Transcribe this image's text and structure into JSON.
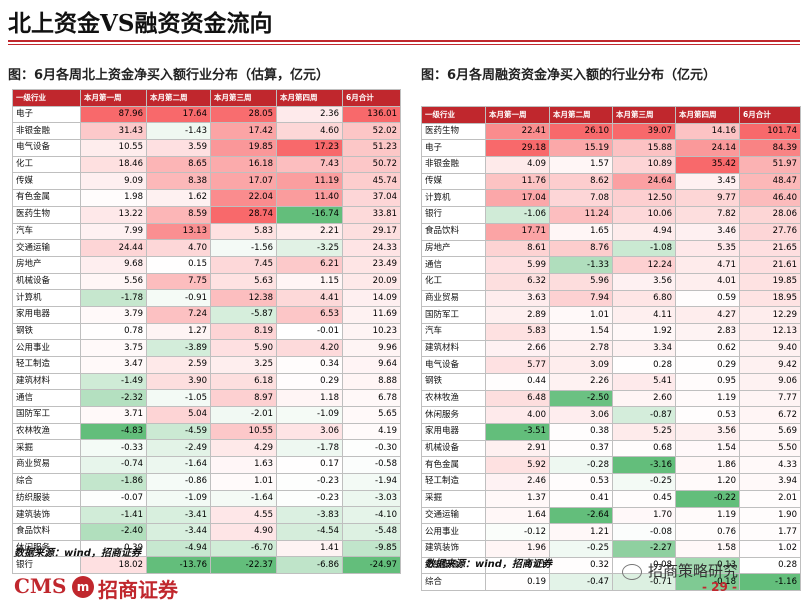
{
  "title": "北上资金VS融资资金流向",
  "left": {
    "caption": "图：6月各周北上资金净买入额行业分布（估算，亿元）",
    "headers": [
      "一级行业",
      "本月第一周",
      "本月第二周",
      "本月第三周",
      "本月第四周",
      "6月合计"
    ],
    "rows": [
      [
        "电子",
        "87.96",
        "17.64",
        "28.05",
        "2.36",
        "136.01"
      ],
      [
        "非银金融",
        "31.43",
        "-1.43",
        "17.42",
        "4.60",
        "52.02"
      ],
      [
        "电气设备",
        "10.55",
        "3.59",
        "19.85",
        "17.23",
        "51.23"
      ],
      [
        "化工",
        "18.46",
        "8.65",
        "16.18",
        "7.43",
        "50.72"
      ],
      [
        "传媒",
        "9.09",
        "8.38",
        "17.07",
        "11.19",
        "45.74"
      ],
      [
        "有色金属",
        "1.98",
        "1.62",
        "22.04",
        "11.40",
        "37.04"
      ],
      [
        "医药生物",
        "13.22",
        "8.59",
        "28.74",
        "-16.74",
        "33.81"
      ],
      [
        "汽车",
        "7.99",
        "13.13",
        "5.83",
        "2.21",
        "29.17"
      ],
      [
        "交通运输",
        "24.44",
        "4.70",
        "-1.56",
        "-3.25",
        "24.33"
      ],
      [
        "房地产",
        "9.68",
        "0.15",
        "7.45",
        "6.21",
        "23.49"
      ],
      [
        "机械设备",
        "5.56",
        "7.75",
        "5.63",
        "1.15",
        "20.09"
      ],
      [
        "计算机",
        "-1.78",
        "-0.91",
        "12.38",
        "4.41",
        "14.09"
      ],
      [
        "家用电器",
        "3.79",
        "7.24",
        "-5.87",
        "6.53",
        "11.69"
      ],
      [
        "钢铁",
        "0.78",
        "1.27",
        "8.19",
        "-0.01",
        "10.23"
      ],
      [
        "公用事业",
        "3.75",
        "-3.89",
        "5.90",
        "4.20",
        "9.96"
      ],
      [
        "轻工制造",
        "3.47",
        "2.59",
        "3.25",
        "0.34",
        "9.64"
      ],
      [
        "建筑材料",
        "-1.49",
        "3.90",
        "6.18",
        "0.29",
        "8.88"
      ],
      [
        "通信",
        "-2.32",
        "-1.05",
        "8.97",
        "1.18",
        "6.78"
      ],
      [
        "国防军工",
        "3.71",
        "5.04",
        "-2.01",
        "-1.09",
        "5.65"
      ],
      [
        "农林牧渔",
        "-4.83",
        "-4.59",
        "10.55",
        "3.06",
        "4.19"
      ],
      [
        "采掘",
        "-0.33",
        "-2.49",
        "4.29",
        "-1.78",
        "-0.30"
      ],
      [
        "商业贸易",
        "-0.74",
        "-1.64",
        "1.63",
        "0.17",
        "-0.58"
      ],
      [
        "综合",
        "-1.86",
        "-0.86",
        "1.01",
        "-0.23",
        "-1.94"
      ],
      [
        "纺织服装",
        "-0.07",
        "-1.09",
        "-1.64",
        "-0.23",
        "-3.03"
      ],
      [
        "建筑装饰",
        "-1.41",
        "-3.41",
        "4.55",
        "-3.83",
        "-4.10"
      ],
      [
        "食品饮料",
        "-2.40",
        "-3.44",
        "4.90",
        "-4.54",
        "-5.48"
      ],
      [
        "休闲服务",
        "0.39",
        "-4.94",
        "-6.70",
        "1.41",
        "-9.85"
      ],
      [
        "银行",
        "18.02",
        "-13.76",
        "-22.37",
        "-6.86",
        "-24.97"
      ]
    ]
  },
  "right": {
    "caption": "图：6月各周融资资金净买入额的行业分布（亿元）",
    "headers": [
      "一级行业",
      "本月第一周",
      "本月第二周",
      "本月第三周",
      "本月第四周",
      "6月合计"
    ],
    "rows": [
      [
        "医药生物",
        "22.41",
        "26.10",
        "39.07",
        "14.16",
        "101.74"
      ],
      [
        "电子",
        "29.18",
        "15.19",
        "15.88",
        "24.14",
        "84.39"
      ],
      [
        "非银金融",
        "4.09",
        "1.57",
        "10.89",
        "35.42",
        "51.97"
      ],
      [
        "传媒",
        "11.76",
        "8.62",
        "24.64",
        "3.45",
        "48.47"
      ],
      [
        "计算机",
        "17.04",
        "7.08",
        "12.50",
        "9.77",
        "46.40"
      ],
      [
        "银行",
        "-1.06",
        "11.24",
        "10.06",
        "7.82",
        "28.06"
      ],
      [
        "食品饮料",
        "17.71",
        "1.65",
        "4.94",
        "3.46",
        "27.76"
      ],
      [
        "房地产",
        "8.61",
        "8.76",
        "-1.08",
        "5.35",
        "21.65"
      ],
      [
        "通信",
        "5.99",
        "-1.33",
        "12.24",
        "4.71",
        "21.61"
      ],
      [
        "化工",
        "6.32",
        "5.96",
        "3.56",
        "4.01",
        "19.85"
      ],
      [
        "商业贸易",
        "3.63",
        "7.94",
        "6.80",
        "0.59",
        "18.95"
      ],
      [
        "国防军工",
        "2.89",
        "1.01",
        "4.11",
        "4.27",
        "12.29"
      ],
      [
        "汽车",
        "5.83",
        "1.54",
        "1.92",
        "2.83",
        "12.13"
      ],
      [
        "建筑材料",
        "2.66",
        "2.78",
        "3.34",
        "0.62",
        "9.40"
      ],
      [
        "电气设备",
        "5.77",
        "3.09",
        "0.28",
        "0.29",
        "9.42"
      ],
      [
        "钢铁",
        "0.44",
        "2.26",
        "5.41",
        "0.95",
        "9.06"
      ],
      [
        "农林牧渔",
        "6.48",
        "-2.50",
        "2.60",
        "1.19",
        "7.77"
      ],
      [
        "休闲服务",
        "4.00",
        "3.06",
        "-0.87",
        "0.53",
        "6.72"
      ],
      [
        "家用电器",
        "-3.51",
        "0.38",
        "5.25",
        "3.56",
        "5.69"
      ],
      [
        "机械设备",
        "2.91",
        "0.37",
        "0.68",
        "1.54",
        "5.50"
      ],
      [
        "有色金属",
        "5.92",
        "-0.28",
        "-3.16",
        "1.86",
        "4.33"
      ],
      [
        "轻工制造",
        "2.46",
        "0.53",
        "-0.25",
        "1.20",
        "3.94"
      ],
      [
        "采掘",
        "1.37",
        "0.41",
        "0.45",
        "-0.22",
        "2.01"
      ],
      [
        "交通运输",
        "1.64",
        "-2.64",
        "1.70",
        "1.19",
        "1.90"
      ],
      [
        "公用事业",
        "-0.12",
        "1.21",
        "-0.08",
        "0.76",
        "1.77"
      ],
      [
        "建筑装饰",
        "1.96",
        "-0.25",
        "-2.27",
        "1.58",
        "1.02"
      ],
      [
        "纺织服装",
        "0.01",
        "0.32",
        "0.08",
        "-0.13",
        "0.28"
      ],
      [
        "综合",
        "0.19",
        "-0.47",
        "-0.71",
        "-0.18",
        "-1.16"
      ]
    ]
  },
  "source": "数据来源：wind，招商证券",
  "logo": {
    "cms": "CMS",
    "mark": "m",
    "cn": "招商证券"
  },
  "wechat": "招商策略研究",
  "page_number": "- 29 -",
  "colors": {
    "brand_red": "#c0272d",
    "positive": "#f8696b",
    "negative": "#63be7b"
  }
}
